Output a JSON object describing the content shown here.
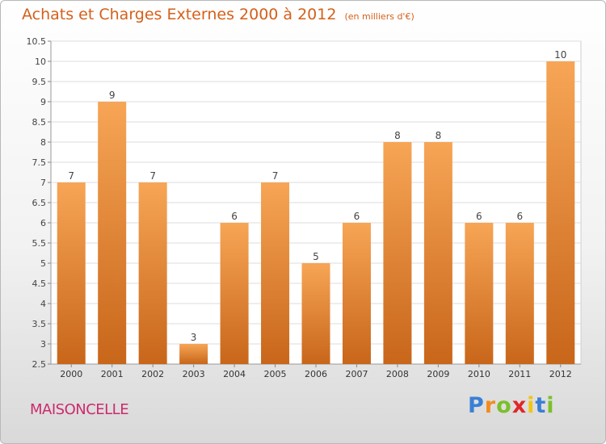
{
  "header": {
    "title": "Achats et Charges Externes 2000 à 2012",
    "unit": "(en milliers d'€)"
  },
  "footer": {
    "town": "MAISONCELLE",
    "logo": [
      "P",
      "r",
      "o",
      "x",
      "i",
      "t",
      "i"
    ],
    "logo_colors": [
      "#3a7fd5",
      "#f28c1e",
      "#7bbf2a",
      "#e0262a",
      "#f2c416",
      "#3a7fd5",
      "#7bbf2a"
    ]
  },
  "chart_data": {
    "type": "bar",
    "title": "Achats et Charges Externes 2000 à 2012",
    "subtitle": "(en milliers d'€)",
    "xlabel": "",
    "ylabel": "",
    "categories": [
      "2000",
      "2001",
      "2002",
      "2003",
      "2004",
      "2005",
      "2006",
      "2007",
      "2008",
      "2009",
      "2010",
      "2011",
      "2012"
    ],
    "values": [
      7,
      9,
      7,
      3,
      6,
      7,
      5,
      6,
      8,
      8,
      6,
      6,
      10
    ],
    "ylim": [
      2.5,
      10.5
    ],
    "yticks": [
      "2.5",
      "3",
      "3.5",
      "4",
      "4.5",
      "5",
      "5.5",
      "6",
      "6.5",
      "7",
      "7.5",
      "8",
      "8.5",
      "9",
      "9.5",
      "10",
      "10.5"
    ],
    "grid": true,
    "bar_color": "#f0923c",
    "bar_color_dark": "#c8661a"
  }
}
